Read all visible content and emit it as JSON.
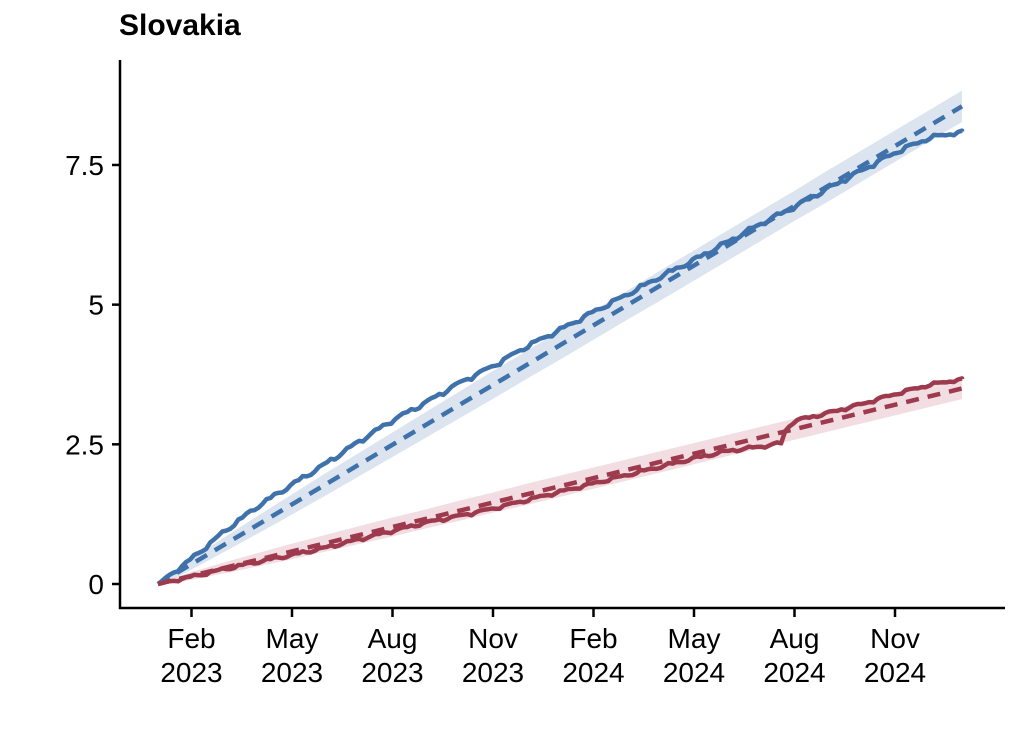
{
  "chart_data": {
    "type": "line",
    "title": "Slovakia",
    "xlabel": "",
    "ylabel": "",
    "grid": false,
    "legend": false,
    "x_unit": "months since 2023-01-01",
    "xlim": [
      0,
      24
    ],
    "ylim": [
      0,
      9.2
    ],
    "axis_color": "#000000",
    "y_ticks": [
      {
        "value": 0,
        "label": "0"
      },
      {
        "value": 2.5,
        "label": "2.5"
      },
      {
        "value": 5,
        "label": "5"
      },
      {
        "value": 7.5,
        "label": "7.5"
      }
    ],
    "x_ticks": [
      {
        "month": 1,
        "line1": "Feb",
        "line2": "2023"
      },
      {
        "month": 4,
        "line1": "May",
        "line2": "2023"
      },
      {
        "month": 7,
        "line1": "Aug",
        "line2": "2023"
      },
      {
        "month": 10,
        "line1": "Nov",
        "line2": "2023"
      },
      {
        "month": 13,
        "line1": "Feb",
        "line2": "2024"
      },
      {
        "month": 16,
        "line1": "May",
        "line2": "2024"
      },
      {
        "month": 19,
        "line1": "Aug",
        "line2": "2024"
      },
      {
        "month": 22,
        "line1": "Nov",
        "line2": "2024"
      }
    ],
    "bands": [
      {
        "name": "blue-confidence-band",
        "color": "#DCE4F0",
        "x": [
          0,
          1,
          2,
          3,
          4,
          5,
          6,
          7,
          8,
          9,
          10,
          11,
          12,
          13,
          14,
          15,
          16,
          17,
          18,
          19,
          20,
          21,
          22,
          23,
          24
        ],
        "center_x": [
          0,
          24
        ],
        "center_y": [
          0,
          8.55
        ],
        "half_widths": [
          0.04,
          0.1,
          0.13,
          0.16,
          0.18,
          0.2,
          0.21,
          0.22,
          0.23,
          0.24,
          0.25,
          0.25,
          0.26,
          0.26,
          0.26,
          0.27,
          0.27,
          0.27,
          0.27,
          0.27,
          0.28,
          0.28,
          0.28,
          0.28,
          0.28
        ]
      },
      {
        "name": "red-confidence-band",
        "color": "#F2DEE2",
        "x": [
          0,
          1,
          2,
          3,
          4,
          5,
          6,
          7,
          8,
          9,
          10,
          11,
          12,
          13,
          14,
          15,
          16,
          17,
          18,
          19,
          20,
          21,
          22,
          23,
          24
        ],
        "center_x": [
          0,
          24
        ],
        "center_y": [
          0,
          3.5
        ],
        "half_widths": [
          0.03,
          0.07,
          0.1,
          0.12,
          0.14,
          0.15,
          0.16,
          0.17,
          0.17,
          0.18,
          0.18,
          0.19,
          0.19,
          0.19,
          0.19,
          0.19,
          0.19,
          0.19,
          0.19,
          0.19,
          0.19,
          0.19,
          0.19,
          0.19,
          0.19
        ]
      }
    ],
    "series": [
      {
        "name": "blue-dashed-trend",
        "color": "#3F72AB",
        "style": "dashed",
        "x": [
          0,
          24
        ],
        "y": [
          0,
          8.55
        ]
      },
      {
        "name": "red-dashed-trend",
        "color": "#9D3A4D",
        "style": "dashed",
        "x": [
          0,
          24
        ],
        "y": [
          0,
          3.5
        ]
      },
      {
        "name": "blue-solid-observed",
        "color": "#3F72AB",
        "style": "solid",
        "wiggle": 0.028,
        "x": [
          0,
          1,
          2,
          3,
          4,
          5,
          6,
          7,
          8,
          9,
          10,
          11,
          12,
          13,
          14,
          15,
          16,
          17,
          18,
          19,
          20,
          21,
          22,
          23,
          24
        ],
        "y": [
          0,
          0.45,
          0.95,
          1.4,
          1.78,
          2.15,
          2.55,
          2.93,
          3.25,
          3.6,
          3.9,
          4.25,
          4.55,
          4.87,
          5.18,
          5.5,
          5.8,
          6.12,
          6.45,
          6.75,
          7.08,
          7.4,
          7.72,
          7.98,
          8.1
        ]
      },
      {
        "name": "red-solid-observed",
        "color": "#9D3A4D",
        "style": "solid",
        "wiggle": 0.02,
        "x": [
          0,
          1,
          2,
          3,
          4,
          5,
          6,
          7,
          8,
          9,
          10,
          11,
          12,
          13,
          14,
          15,
          16,
          17,
          18,
          18.6,
          18.75,
          19,
          20,
          21,
          22,
          23,
          24
        ],
        "y": [
          0,
          0.13,
          0.27,
          0.4,
          0.52,
          0.65,
          0.8,
          0.95,
          1.1,
          1.22,
          1.35,
          1.5,
          1.65,
          1.8,
          1.95,
          2.1,
          2.25,
          2.38,
          2.46,
          2.52,
          2.78,
          2.92,
          3.06,
          3.22,
          3.4,
          3.56,
          3.67
        ]
      }
    ]
  }
}
